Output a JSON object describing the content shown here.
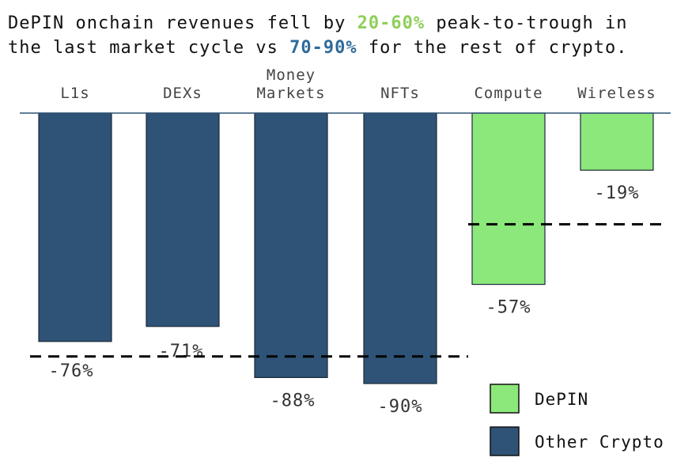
{
  "title": {
    "line1_pre": "DePIN onchain revenues fell by ",
    "line1_highlight": "20-60%",
    "line1_post": " peak-to-trough in",
    "line2_pre": "the last market cycle vs ",
    "line2_highlight": "70-90%",
    "line2_post": " for the rest of crypto."
  },
  "colors": {
    "depin": "#8ce87a",
    "other": "#2f5376",
    "highlight_green": "#8ecf5a",
    "highlight_blue": "#2f6b9a"
  },
  "chart_data": {
    "type": "bar",
    "categories": [
      "L1s",
      "DEXs",
      "Money Markets",
      "NFTs",
      "Compute",
      "Wireless"
    ],
    "category_lines": [
      [
        "L1s"
      ],
      [
        "DEXs"
      ],
      [
        "Money",
        "Markets"
      ],
      [
        "NFTs"
      ],
      [
        "Compute"
      ],
      [
        "Wireless"
      ]
    ],
    "values": [
      -76,
      -71,
      -88,
      -90,
      -57,
      -19
    ],
    "value_labels": [
      "-76%",
      "-71%",
      "-88%",
      "-90%",
      "-57%",
      "-19%"
    ],
    "groups": [
      "Other Crypto",
      "Other Crypto",
      "Other Crypto",
      "Other Crypto",
      "DePIN",
      "DePIN"
    ],
    "reference_lines": [
      {
        "group": "Other Crypto",
        "value": -81
      },
      {
        "group": "DePIN",
        "value": -37
      }
    ],
    "ylim": [
      -100,
      0
    ],
    "legend": [
      {
        "name": "DePIN",
        "color": "#8ce87a"
      },
      {
        "name": "Other Crypto",
        "color": "#2f5376"
      }
    ],
    "legend_position": "bottom-right"
  }
}
